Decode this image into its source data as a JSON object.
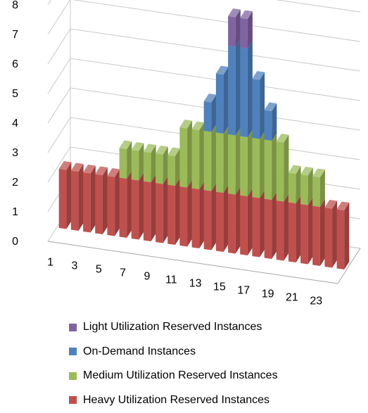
{
  "chart_data": {
    "type": "bar",
    "stacked": true,
    "three_d": true,
    "grid": true,
    "legend_position": "bottom",
    "x": [
      1,
      2,
      3,
      4,
      5,
      6,
      7,
      8,
      9,
      10,
      11,
      12,
      13,
      14,
      15,
      16,
      17,
      18,
      19,
      20,
      21,
      22,
      23,
      24
    ],
    "x_tick_labels": [
      "1",
      "3",
      "5",
      "7",
      "9",
      "11",
      "13",
      "15",
      "17",
      "19",
      "21",
      "23"
    ],
    "ylim": [
      0,
      8
    ],
    "y_ticks": [
      "0",
      "1",
      "2",
      "3",
      "4",
      "5",
      "6",
      "7",
      "8"
    ],
    "series": [
      {
        "name": "Heavy Utilization Reserved Instances",
        "color": "#c0504d",
        "values": [
          2,
          2,
          2,
          2,
          2,
          2,
          2,
          2,
          2,
          2,
          2,
          2,
          2,
          2,
          2,
          2,
          2,
          2,
          2,
          2,
          2,
          2,
          2,
          2
        ]
      },
      {
        "name": "Medium Utilization Reserved Instances",
        "color": "#9bbb59",
        "values": [
          0,
          0,
          0,
          0,
          0,
          1,
          1,
          1,
          1,
          1,
          2,
          2,
          2,
          2,
          2,
          2,
          2,
          2,
          2,
          1,
          1,
          1,
          0,
          0
        ]
      },
      {
        "name": "On-Demand Instances",
        "color": "#4f81bd",
        "values": [
          0,
          0,
          0,
          0,
          0,
          0,
          0,
          0,
          0,
          0,
          0,
          0,
          1,
          2,
          3,
          3,
          2,
          1,
          0,
          0,
          0,
          0,
          0,
          0
        ]
      },
      {
        "name": "Light Utilization Reserved Instances",
        "color": "#8064a2",
        "values": [
          0,
          0,
          0,
          0,
          0,
          0,
          0,
          0,
          0,
          0,
          0,
          0,
          0,
          0,
          1,
          1,
          0,
          0,
          0,
          0,
          0,
          0,
          0,
          0
        ]
      }
    ],
    "legend": [
      {
        "label": "Light Utilization Reserved Instances",
        "color": "#8064a2"
      },
      {
        "label": "On-Demand Instances",
        "color": "#4f81bd"
      },
      {
        "label": "Medium Utilization Reserved Instances",
        "color": "#9bbb59"
      },
      {
        "label": "Heavy Utilization Reserved Instances",
        "color": "#c0504d"
      }
    ]
  }
}
